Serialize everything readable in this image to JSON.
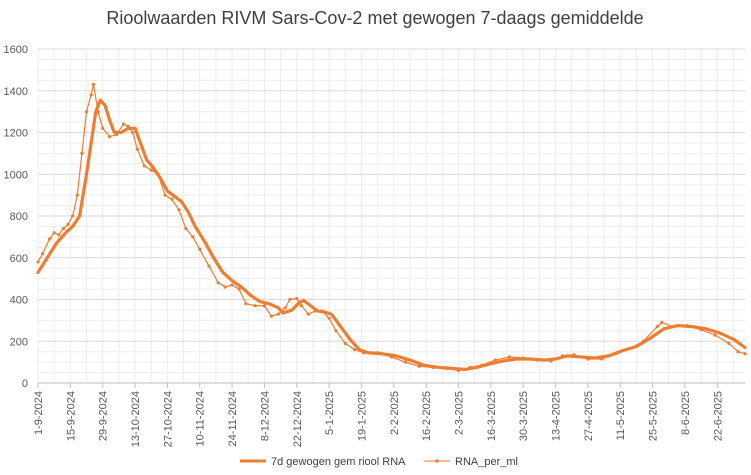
{
  "chart_data": {
    "type": "line",
    "title": "Rioolwaarden RIVM Sars-Cov-2 met gewogen 7-daags gemiddelde",
    "xlabel": "",
    "ylabel": "",
    "ylim": [
      0,
      1600
    ],
    "yticks": [
      0,
      200,
      400,
      600,
      800,
      1000,
      1200,
      1400,
      1600
    ],
    "xlim": [
      "2024-09-01",
      "2025-07-04"
    ],
    "xticks": [
      "1-9-2024",
      "15-9-2024",
      "29-9-2024",
      "13-10-2024",
      "27-10-2024",
      "10-11-2024",
      "24-11-2024",
      "8-12-2024",
      "22-12-2024",
      "5-1-2025",
      "19-1-2025",
      "2-2-2025",
      "16-2-2025",
      "2-3-2025",
      "16-3-2025",
      "30-3-2025",
      "13-4-2025",
      "27-4-2025",
      "11-5-2025",
      "25-5-2025",
      "8-6-2025",
      "22-6-2025"
    ],
    "grid": true,
    "legend_position": "bottom",
    "colors": {
      "series1": "#ED7D31",
      "series2": "#ED7D31",
      "grid": "#D9D9D9",
      "axis": "#BFBFBF"
    },
    "series": [
      {
        "name": "7d gewogen gem riool RNA",
        "style": "thick-line",
        "points": [
          [
            "2024-09-01",
            530
          ],
          [
            "2024-09-05",
            600
          ],
          [
            "2024-09-09",
            670
          ],
          [
            "2024-09-13",
            720
          ],
          [
            "2024-09-16",
            750
          ],
          [
            "2024-09-19",
            800
          ],
          [
            "2024-09-22",
            1000
          ],
          [
            "2024-09-24",
            1150
          ],
          [
            "2024-09-26",
            1300
          ],
          [
            "2024-09-28",
            1355
          ],
          [
            "2024-09-30",
            1330
          ],
          [
            "2024-10-02",
            1260
          ],
          [
            "2024-10-04",
            1200
          ],
          [
            "2024-10-07",
            1200
          ],
          [
            "2024-10-10",
            1220
          ],
          [
            "2024-10-13",
            1220
          ],
          [
            "2024-10-15",
            1160
          ],
          [
            "2024-10-18",
            1070
          ],
          [
            "2024-10-21",
            1030
          ],
          [
            "2024-10-24",
            980
          ],
          [
            "2024-10-27",
            920
          ],
          [
            "2024-10-30",
            895
          ],
          [
            "2024-11-02",
            870
          ],
          [
            "2024-11-05",
            820
          ],
          [
            "2024-11-08",
            750
          ],
          [
            "2024-11-12",
            680
          ],
          [
            "2024-11-16",
            600
          ],
          [
            "2024-11-20",
            530
          ],
          [
            "2024-11-24",
            490
          ],
          [
            "2024-11-28",
            460
          ],
          [
            "2024-12-02",
            420
          ],
          [
            "2024-12-06",
            390
          ],
          [
            "2024-12-10",
            380
          ],
          [
            "2024-12-14",
            360
          ],
          [
            "2024-12-16",
            335
          ],
          [
            "2024-12-20",
            350
          ],
          [
            "2024-12-23",
            385
          ],
          [
            "2024-12-25",
            395
          ],
          [
            "2024-12-28",
            370
          ],
          [
            "2024-12-31",
            345
          ],
          [
            "2025-01-03",
            340
          ],
          [
            "2025-01-06",
            330
          ],
          [
            "2025-01-10",
            270
          ],
          [
            "2025-01-14",
            210
          ],
          [
            "2025-01-18",
            160
          ],
          [
            "2025-01-22",
            145
          ],
          [
            "2025-01-28",
            140
          ],
          [
            "2025-02-03",
            130
          ],
          [
            "2025-02-09",
            110
          ],
          [
            "2025-02-15",
            85
          ],
          [
            "2025-02-21",
            75
          ],
          [
            "2025-02-27",
            70
          ],
          [
            "2025-03-05",
            65
          ],
          [
            "2025-03-10",
            75
          ],
          [
            "2025-03-15",
            90
          ],
          [
            "2025-03-21",
            105
          ],
          [
            "2025-03-27",
            115
          ],
          [
            "2025-04-02",
            115
          ],
          [
            "2025-04-08",
            110
          ],
          [
            "2025-04-13",
            115
          ],
          [
            "2025-04-18",
            130
          ],
          [
            "2025-04-24",
            125
          ],
          [
            "2025-04-30",
            120
          ],
          [
            "2025-05-06",
            130
          ],
          [
            "2025-05-12",
            155
          ],
          [
            "2025-05-18",
            175
          ],
          [
            "2025-05-24",
            215
          ],
          [
            "2025-05-30",
            260
          ],
          [
            "2025-06-05",
            275
          ],
          [
            "2025-06-11",
            270
          ],
          [
            "2025-06-17",
            260
          ],
          [
            "2025-06-23",
            240
          ],
          [
            "2025-06-29",
            210
          ],
          [
            "2025-07-04",
            170
          ]
        ]
      },
      {
        "name": "RNA_per_ml",
        "style": "thin-line-markers",
        "points": [
          [
            "2024-09-01",
            580
          ],
          [
            "2024-09-03",
            620
          ],
          [
            "2024-09-06",
            690
          ],
          [
            "2024-09-08",
            720
          ],
          [
            "2024-09-10",
            710
          ],
          [
            "2024-09-12",
            740
          ],
          [
            "2024-09-14",
            760
          ],
          [
            "2024-09-16",
            800
          ],
          [
            "2024-09-18",
            900
          ],
          [
            "2024-09-20",
            1100
          ],
          [
            "2024-09-22",
            1300
          ],
          [
            "2024-09-24",
            1380
          ],
          [
            "2024-09-25",
            1430
          ],
          [
            "2024-09-27",
            1300
          ],
          [
            "2024-09-29",
            1220
          ],
          [
            "2024-10-02",
            1180
          ],
          [
            "2024-10-05",
            1190
          ],
          [
            "2024-10-08",
            1240
          ],
          [
            "2024-10-10",
            1230
          ],
          [
            "2024-10-12",
            1200
          ],
          [
            "2024-10-14",
            1120
          ],
          [
            "2024-10-17",
            1040
          ],
          [
            "2024-10-20",
            1020
          ],
          [
            "2024-10-23",
            1000
          ],
          [
            "2024-10-26",
            900
          ],
          [
            "2024-10-29",
            880
          ],
          [
            "2024-11-01",
            830
          ],
          [
            "2024-11-04",
            740
          ],
          [
            "2024-11-07",
            700
          ],
          [
            "2024-11-10",
            640
          ],
          [
            "2024-11-14",
            560
          ],
          [
            "2024-11-18",
            480
          ],
          [
            "2024-11-21",
            460
          ],
          [
            "2024-11-24",
            470
          ],
          [
            "2024-11-27",
            450
          ],
          [
            "2024-11-30",
            380
          ],
          [
            "2024-12-04",
            370
          ],
          [
            "2024-12-08",
            370
          ],
          [
            "2024-12-11",
            320
          ],
          [
            "2024-12-14",
            330
          ],
          [
            "2024-12-17",
            360
          ],
          [
            "2024-12-19",
            400
          ],
          [
            "2024-12-22",
            405
          ],
          [
            "2024-12-24",
            370
          ],
          [
            "2024-12-27",
            330
          ],
          [
            "2024-12-30",
            345
          ],
          [
            "2025-01-02",
            345
          ],
          [
            "2025-01-05",
            310
          ],
          [
            "2025-01-08",
            250
          ],
          [
            "2025-01-12",
            190
          ],
          [
            "2025-01-16",
            160
          ],
          [
            "2025-01-20",
            145
          ],
          [
            "2025-01-26",
            145
          ],
          [
            "2025-02-01",
            125
          ],
          [
            "2025-02-07",
            100
          ],
          [
            "2025-02-13",
            80
          ],
          [
            "2025-02-19",
            75
          ],
          [
            "2025-02-25",
            70
          ],
          [
            "2025-03-02",
            60
          ],
          [
            "2025-03-07",
            75
          ],
          [
            "2025-03-12",
            85
          ],
          [
            "2025-03-18",
            110
          ],
          [
            "2025-03-24",
            125
          ],
          [
            "2025-03-30",
            120
          ],
          [
            "2025-04-05",
            110
          ],
          [
            "2025-04-11",
            105
          ],
          [
            "2025-04-16",
            130
          ],
          [
            "2025-04-21",
            135
          ],
          [
            "2025-04-27",
            115
          ],
          [
            "2025-05-03",
            115
          ],
          [
            "2025-05-09",
            140
          ],
          [
            "2025-05-15",
            165
          ],
          [
            "2025-05-21",
            200
          ],
          [
            "2025-05-27",
            270
          ],
          [
            "2025-05-29",
            290
          ],
          [
            "2025-06-03",
            270
          ],
          [
            "2025-06-09",
            275
          ],
          [
            "2025-06-15",
            255
          ],
          [
            "2025-06-21",
            230
          ],
          [
            "2025-06-27",
            190
          ],
          [
            "2025-07-01",
            150
          ],
          [
            "2025-07-04",
            140
          ]
        ]
      }
    ]
  }
}
